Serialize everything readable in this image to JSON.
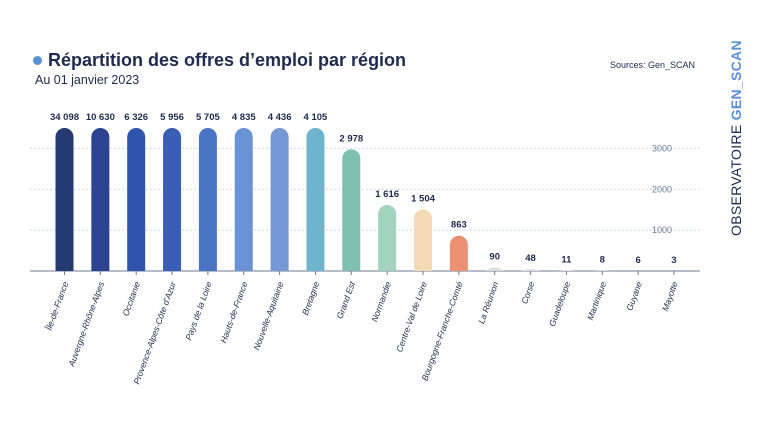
{
  "header": {
    "title": "Répartition des offres d’emploi par région",
    "subtitle": "Au 01 janvier 2023",
    "sources": "Sources: Gen_SCAN"
  },
  "brand": {
    "part1": "OBSERVATOIRE ",
    "part2": "GEN_SCAN"
  },
  "colors": {
    "accent": "#5b8fd6",
    "text": "#1f2a4d",
    "grid": "#c9d9ef",
    "axis": "#6c7a96",
    "tick_label": "#8aa4cf"
  },
  "chart_data": {
    "type": "bar",
    "title": "Répartition des offres d’emploi par région",
    "subtitle": "Au 01 janvier 2023",
    "xlabel": "",
    "ylabel": "",
    "ylim": [
      0,
      3500
    ],
    "yticks": [
      1000,
      2000,
      3000
    ],
    "ytick_labels": [
      "1000",
      "2000",
      "3000"
    ],
    "grid": true,
    "categories": [
      "Île-de-France",
      "Auvergne-Rhône-Alpes",
      "Occitanie",
      "Provence-Alpes-Côte d’Azur",
      "Pays de la Loire",
      "Hauts-de-France",
      "Nouvelle-Aquitaine",
      "Bretagne",
      "Grand Est",
      "Normandie",
      "Centre-Val de Loire",
      "Bourgogne-Franche-Comté",
      "La Réunion",
      "Corse",
      "Guadeloupe",
      "Martinique",
      "Guyane",
      "Mayotte"
    ],
    "values": [
      34098,
      10630,
      6326,
      5956,
      5705,
      4835,
      4436,
      4105,
      2978,
      1616,
      1504,
      863,
      90,
      48,
      11,
      8,
      6,
      3
    ],
    "value_labels": [
      "34 098",
      "10 630",
      "6 326",
      "5 956",
      "5 705",
      "4 835",
      "4 436",
      "4 105",
      "2 978",
      "1 616",
      "1 504",
      "863",
      "90",
      "48",
      "11",
      "8",
      "6",
      "3"
    ],
    "bar_colors": [
      "#263a72",
      "#2b4390",
      "#2f54ad",
      "#3a5db6",
      "#4a74c6",
      "#6a93d5",
      "#7398d3",
      "#6fb3cc",
      "#7cc0ad",
      "#a3d2be",
      "#f3d9b4",
      "#ec8f73",
      "#dddddd",
      "#dddddd",
      "#dddddd",
      "#dddddd",
      "#dddddd",
      "#dddddd"
    ]
  }
}
